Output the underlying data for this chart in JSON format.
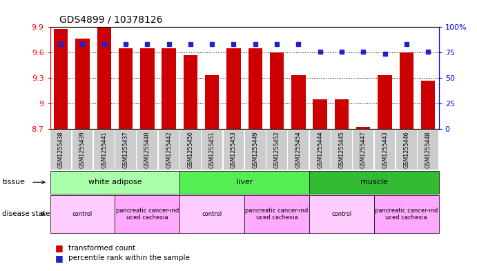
{
  "title": "GDS4899 / 10378126",
  "samples": [
    "GSM1255438",
    "GSM1255439",
    "GSM1255441",
    "GSM1255437",
    "GSM1255440",
    "GSM1255442",
    "GSM1255450",
    "GSM1255451",
    "GSM1255453",
    "GSM1255449",
    "GSM1255452",
    "GSM1255454",
    "GSM1255444",
    "GSM1255445",
    "GSM1255447",
    "GSM1255443",
    "GSM1255446",
    "GSM1255448"
  ],
  "transformed_counts": [
    9.88,
    9.76,
    9.9,
    9.65,
    9.65,
    9.65,
    9.57,
    9.33,
    9.65,
    9.65,
    9.6,
    9.33,
    9.05,
    9.05,
    8.72,
    9.33,
    9.6,
    9.27
  ],
  "percentile_ranks": [
    83,
    83,
    83,
    83,
    83,
    83,
    83,
    83,
    83,
    83,
    83,
    83,
    76,
    76,
    76,
    74,
    83,
    76
  ],
  "ymin": 8.7,
  "ymax": 9.9,
  "yticks": [
    8.7,
    9.0,
    9.3,
    9.6,
    9.9
  ],
  "ytick_labels": [
    "8.7",
    "9",
    "9.3",
    "9.6",
    "9.9"
  ],
  "y2min": 0,
  "y2max": 100,
  "y2ticks": [
    0,
    25,
    50,
    75,
    100
  ],
  "y2tick_labels": [
    "0",
    "25",
    "50",
    "75",
    "100%"
  ],
  "bar_color": "#cc0000",
  "dot_color": "#2222cc",
  "tissue_groups": [
    {
      "label": "white adipose",
      "start": 0,
      "end": 6,
      "color": "#aaffaa"
    },
    {
      "label": "liver",
      "start": 6,
      "end": 12,
      "color": "#55ee55"
    },
    {
      "label": "muscle",
      "start": 12,
      "end": 18,
      "color": "#33bb33"
    }
  ],
  "disease_groups": [
    {
      "label": "control",
      "start": 0,
      "end": 3,
      "color": "#ffccff"
    },
    {
      "label": "pancreatic cancer-ind\nuced cachexia",
      "start": 3,
      "end": 6,
      "color": "#ffaaff"
    },
    {
      "label": "control",
      "start": 6,
      "end": 9,
      "color": "#ffccff"
    },
    {
      "label": "pancreatic cancer-ind\nuced cachexia",
      "start": 9,
      "end": 12,
      "color": "#ffaaff"
    },
    {
      "label": "control",
      "start": 12,
      "end": 15,
      "color": "#ffccff"
    },
    {
      "label": "pancreatic cancer-ind\nuced cachexia",
      "start": 15,
      "end": 18,
      "color": "#ffaaff"
    }
  ]
}
